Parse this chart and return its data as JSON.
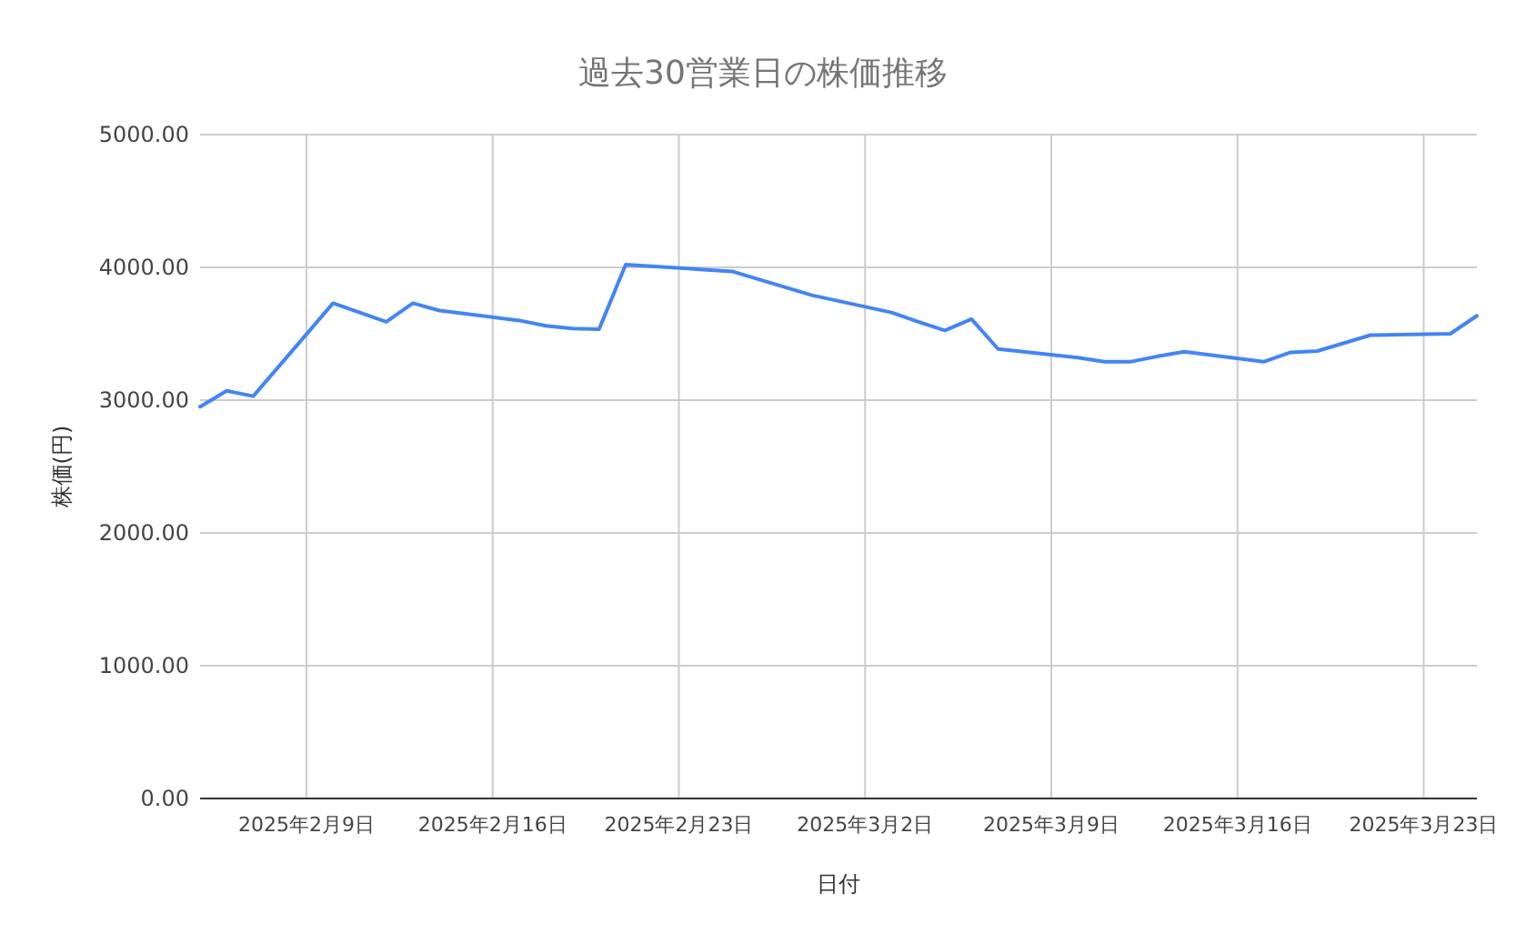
{
  "chart_data": {
    "type": "line",
    "title": "過去30営業日の株価推移",
    "xlabel": "日付",
    "ylabel": "株価(円)",
    "x": [
      "2025-02-05",
      "2025-02-06",
      "2025-02-07",
      "2025-02-10",
      "2025-02-12",
      "2025-02-13",
      "2025-02-14",
      "2025-02-17",
      "2025-02-18",
      "2025-02-19",
      "2025-02-20",
      "2025-02-21",
      "2025-02-25",
      "2025-02-26",
      "2025-02-27",
      "2025-02-28",
      "2025-03-03",
      "2025-03-04",
      "2025-03-05",
      "2025-03-06",
      "2025-03-07",
      "2025-03-10",
      "2025-03-11",
      "2025-03-12",
      "2025-03-13",
      "2025-03-14",
      "2025-03-17",
      "2025-03-18",
      "2025-03-19",
      "2025-03-21",
      "2025-03-24",
      "2025-03-25"
    ],
    "series": [
      {
        "color": "#4285f4",
        "values": [
          2950,
          3070,
          3030,
          3730,
          3590,
          3730,
          3675,
          3600,
          3560,
          3540,
          3535,
          4020,
          3970,
          3910,
          3850,
          3790,
          3660,
          3590,
          3525,
          3610,
          3385,
          3320,
          3290,
          3290,
          3330,
          3365,
          3290,
          3360,
          3370,
          3490,
          3500,
          3635
        ]
      }
    ],
    "xlim": [
      "2025-02-05",
      "2025-03-25"
    ],
    "xticks": [
      {
        "value": "2025-02-09",
        "label": "2025年2月9日"
      },
      {
        "value": "2025-02-16",
        "label": "2025年2月16日"
      },
      {
        "value": "2025-02-23",
        "label": "2025年2月23日"
      },
      {
        "value": "2025-03-02",
        "label": "2025年3月2日"
      },
      {
        "value": "2025-03-09",
        "label": "2025年3月9日"
      },
      {
        "value": "2025-03-16",
        "label": "2025年3月16日"
      },
      {
        "value": "2025-03-23",
        "label": "2025年3月23日"
      }
    ],
    "ylim": [
      0,
      5000
    ],
    "yticks": [
      {
        "value": 0,
        "label": "0.00"
      },
      {
        "value": 1000,
        "label": "1000.00"
      },
      {
        "value": 2000,
        "label": "2000.00"
      },
      {
        "value": 3000,
        "label": "3000.00"
      },
      {
        "value": 4000,
        "label": "4000.00"
      },
      {
        "value": 5000,
        "label": "5000.00"
      }
    ],
    "grid": true,
    "marker": "none",
    "line_style": "solid"
  }
}
